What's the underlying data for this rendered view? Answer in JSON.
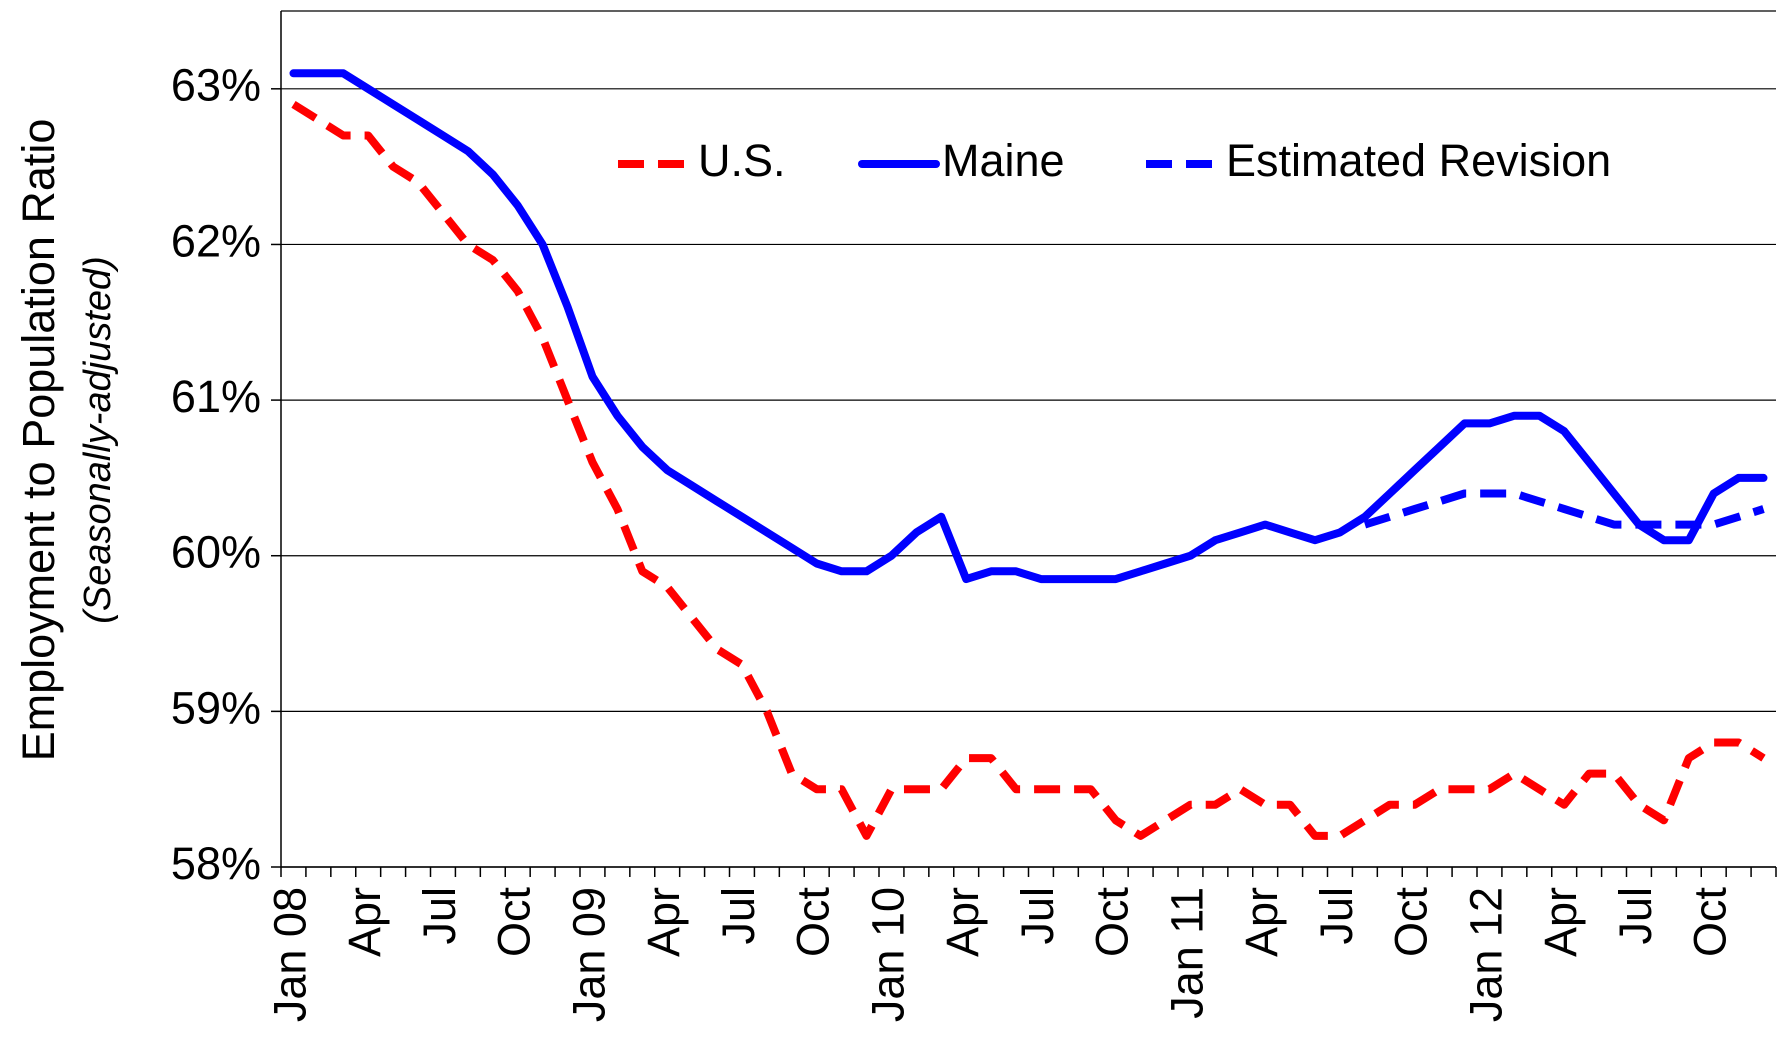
{
  "chart_data": {
    "type": "line",
    "y_label": "Employment to Population Ratio",
    "y_label_sub": "(Seasonally-adjusted)",
    "categories": [
      "Jan 08",
      null,
      null,
      "Apr",
      null,
      null,
      "Jul",
      null,
      null,
      "Oct",
      null,
      null,
      "Jan 09",
      null,
      null,
      "Apr",
      null,
      null,
      "Jul",
      null,
      null,
      "Oct",
      null,
      null,
      "Jan 10",
      null,
      null,
      "Apr",
      null,
      null,
      "Jul",
      null,
      null,
      "Oct",
      null,
      null,
      "Jan 11",
      null,
      null,
      "Apr",
      null,
      null,
      "Jul",
      null,
      null,
      "Oct",
      null,
      null,
      "Jan 12",
      null,
      null,
      "Apr",
      null,
      null,
      "Jul",
      null,
      null,
      "Oct",
      null,
      null
    ],
    "series": [
      {
        "name": "U.S.",
        "color": "#ff0000",
        "dash": true,
        "values": [
          62.9,
          62.8,
          62.7,
          62.7,
          62.5,
          62.4,
          62.2,
          62.0,
          61.9,
          61.7,
          61.4,
          61.0,
          60.6,
          60.3,
          59.9,
          59.8,
          59.6,
          59.4,
          59.3,
          59.0,
          58.6,
          58.5,
          58.5,
          58.2,
          58.5,
          58.5,
          58.5,
          58.7,
          58.7,
          58.5,
          58.5,
          58.5,
          58.5,
          58.3,
          58.2,
          58.3,
          58.4,
          58.4,
          58.5,
          58.4,
          58.4,
          58.2,
          58.2,
          58.3,
          58.4,
          58.4,
          58.5,
          58.5,
          58.5,
          58.6,
          58.5,
          58.4,
          58.6,
          58.6,
          58.4,
          58.3,
          58.7,
          58.8,
          58.8,
          58.7
        ]
      },
      {
        "name": "Maine",
        "color": "#0000ff",
        "dash": false,
        "values": [
          63.1,
          63.1,
          63.1,
          63.0,
          62.9,
          62.8,
          62.7,
          62.6,
          62.45,
          62.25,
          62.0,
          61.6,
          61.15,
          60.9,
          60.7,
          60.55,
          60.45,
          60.35,
          60.25,
          60.15,
          60.05,
          59.95,
          59.9,
          59.9,
          60.0,
          60.15,
          60.25,
          59.85,
          59.9,
          59.9,
          59.85,
          59.85,
          59.85,
          59.85,
          59.9,
          59.95,
          60.0,
          60.1,
          60.15,
          60.2,
          60.15,
          60.1,
          60.15,
          60.25,
          60.4,
          60.55,
          60.7,
          60.85,
          60.85,
          60.9,
          60.9,
          60.8,
          60.6,
          60.4,
          60.2,
          60.1,
          60.1,
          60.4,
          60.5,
          60.5
        ]
      },
      {
        "name": "Estimated Revision",
        "color": "#0000ff",
        "dash": true,
        "values": [
          null,
          null,
          null,
          null,
          null,
          null,
          null,
          null,
          null,
          null,
          null,
          null,
          null,
          null,
          null,
          null,
          null,
          null,
          null,
          null,
          null,
          null,
          null,
          null,
          null,
          null,
          null,
          null,
          null,
          null,
          null,
          null,
          null,
          null,
          null,
          null,
          null,
          null,
          null,
          null,
          null,
          null,
          null,
          60.2,
          60.25,
          60.3,
          60.35,
          60.4,
          60.4,
          60.4,
          60.35,
          60.3,
          60.25,
          60.2,
          60.2,
          60.2,
          60.2,
          60.2,
          60.25,
          60.3
        ]
      }
    ],
    "ylim": [
      58,
      63.5
    ],
    "yticks": [
      {
        "value": 58,
        "label": "58%"
      },
      {
        "value": 59,
        "label": "59%"
      },
      {
        "value": 60,
        "label": "60%"
      },
      {
        "value": 61,
        "label": "61%"
      },
      {
        "value": 62,
        "label": "62%"
      },
      {
        "value": 63,
        "label": "63%"
      }
    ],
    "grid": true,
    "legend": "upper center"
  }
}
